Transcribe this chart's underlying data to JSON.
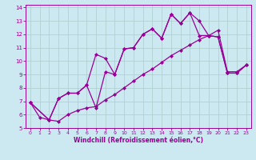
{
  "xlabel": "Windchill (Refroidissement éolien,°C)",
  "bg_color": "#cce8f0",
  "grid_color": "#aacccc",
  "line_color": "#990099",
  "xlim": [
    -0.5,
    23.5
  ],
  "ylim": [
    5,
    14.2
  ],
  "xticks": [
    0,
    1,
    2,
    3,
    4,
    5,
    6,
    7,
    8,
    9,
    10,
    11,
    12,
    13,
    14,
    15,
    16,
    17,
    18,
    19,
    20,
    21,
    22,
    23
  ],
  "yticks": [
    5,
    6,
    7,
    8,
    9,
    10,
    11,
    12,
    13,
    14
  ],
  "line1_x": [
    0,
    1,
    2,
    3,
    4,
    5,
    6,
    7,
    8,
    9,
    10,
    11,
    12,
    13,
    14,
    15,
    16,
    17,
    18,
    19,
    20,
    21,
    22,
    23
  ],
  "line1_y": [
    6.9,
    5.8,
    5.6,
    5.5,
    6.0,
    6.3,
    6.5,
    6.6,
    7.1,
    7.5,
    8.0,
    8.5,
    9.0,
    9.4,
    9.9,
    10.4,
    10.8,
    11.2,
    11.6,
    11.9,
    12.3,
    9.2,
    9.2,
    9.7
  ],
  "line2_x": [
    0,
    2,
    3,
    4,
    5,
    6,
    7,
    8,
    9,
    10,
    11,
    12,
    13,
    14,
    15,
    16,
    17,
    18,
    19,
    20,
    21,
    22,
    23
  ],
  "line2_y": [
    6.9,
    5.6,
    7.2,
    7.6,
    7.6,
    8.2,
    6.5,
    9.2,
    9.0,
    10.9,
    11.0,
    12.0,
    12.4,
    11.7,
    13.5,
    12.8,
    13.6,
    11.9,
    11.9,
    11.8,
    9.1,
    9.1,
    9.7
  ],
  "line3_x": [
    0,
    2,
    3,
    4,
    5,
    6,
    7,
    8,
    9,
    10,
    11,
    12,
    13,
    14,
    15,
    16,
    17,
    18,
    19,
    20,
    21,
    22,
    23
  ],
  "line3_y": [
    6.9,
    5.6,
    7.2,
    7.6,
    7.6,
    8.2,
    10.5,
    10.2,
    9.0,
    10.9,
    11.0,
    12.0,
    12.4,
    11.7,
    13.5,
    12.8,
    13.6,
    13.0,
    11.9,
    11.8,
    9.1,
    9.1,
    9.7
  ],
  "marker": "D",
  "markersize": 2,
  "linewidth": 0.9,
  "tick_fontsize": 5,
  "xlabel_fontsize": 5.5
}
